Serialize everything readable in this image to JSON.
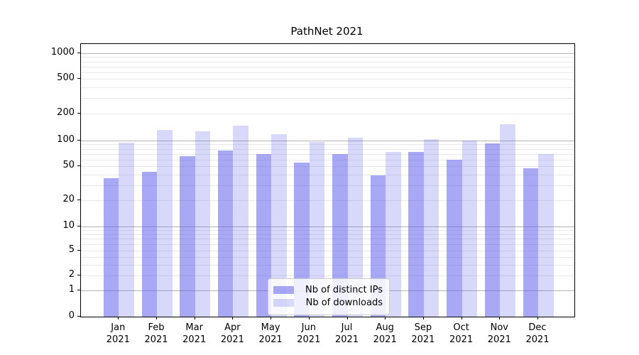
{
  "chart_data": {
    "type": "bar",
    "title": "PathNet 2021",
    "categories": [
      "Jan",
      "Feb",
      "Mar",
      "Apr",
      "May",
      "Jun",
      "Jul",
      "Aug",
      "Sep",
      "Oct",
      "Nov",
      "Dec"
    ],
    "category_year": "2021",
    "series": [
      {
        "name": "Nb of distinct IPs",
        "color": "rgba(88,88,236,0.52)",
        "values": [
          36,
          43,
          65,
          77,
          70,
          55,
          70,
          39,
          74,
          60,
          93,
          47
        ]
      },
      {
        "name": "Nb of downloads",
        "color": "rgba(88,88,236,0.23)",
        "values": [
          95,
          131,
          126,
          148,
          118,
          97,
          108,
          73,
          104,
          101,
          152,
          70
        ]
      }
    ],
    "yscale": "symlog",
    "yticks": [
      0,
      1,
      2,
      5,
      10,
      20,
      50,
      100,
      200,
      500,
      1000
    ],
    "ylim": [
      0,
      1280
    ],
    "xlabel": "",
    "ylabel": "",
    "grid": "both",
    "legend_position": "lower center",
    "colors": {
      "major_grid": "#b4b4b4",
      "minor_grid": "#e9e9ec",
      "spine": "#000000",
      "text": "#000000"
    }
  }
}
